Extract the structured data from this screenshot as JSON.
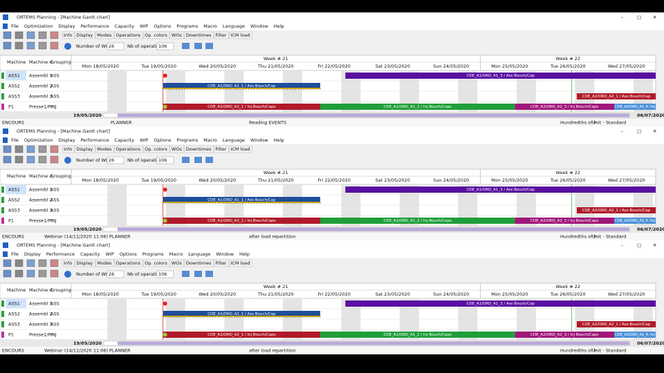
{
  "windows": [
    {
      "title": "ORTEMS Planning - [Machine Gantt chart]",
      "menu": [
        "File",
        "Optimization",
        "Display",
        "Performance",
        "Capacity",
        "WIP",
        "Options",
        "Programs",
        "Macro",
        "Language",
        "Window",
        "Help"
      ],
      "status": [
        "ENCOURS",
        "PLANNER",
        "Reading EVENTS",
        "Hundredths of h.",
        "Unit - Standard"
      ]
    },
    {
      "title": "ORTEMS Planning - [Machine Gantt chart]",
      "menu": [
        "File",
        "Optimization",
        "Display",
        "Performance",
        "Capacity",
        "WIP",
        "Options",
        "Programs",
        "Macro",
        "Language",
        "Window",
        "Help"
      ],
      "status": [
        "ENCOURS",
        "Webinar (14/11/2020 11:06)",
        "PLANNER",
        "after load repartition",
        "Hundredths of h.",
        "Unit - Standard"
      ]
    },
    {
      "title": "ORTEMS Planning - [Machine Gantt chart]",
      "menu": [
        "File",
        "Display",
        "Performance",
        "Capacity",
        "WIP",
        "Options",
        "Programs",
        "Macro",
        "Language",
        "Window",
        "Help"
      ],
      "status": [
        "ENCOURS",
        "Webinar (14/11/2020 11:06)",
        "PLANNER",
        "after load repartition",
        "Hundredths of h.",
        "Unit - Standard"
      ]
    }
  ],
  "tabs": [
    "Info",
    "Display",
    "Modes",
    "Operations",
    "Op. colors",
    "WOs",
    "Downtimes",
    "Filter",
    "ICM load"
  ],
  "wo_label": "Number of WOs",
  "wo_value": "26",
  "ops_label": "Nb of operations",
  "ops_value": "106",
  "columns": [
    "Machine",
    "Machine d.",
    "Grouping"
  ],
  "rows": [
    {
      "machine": "ASS1",
      "desc": "Assembl 1",
      "group": "ASS",
      "color": "#2e9e3e"
    },
    {
      "machine": "ASS2",
      "desc": "Assembl 2",
      "group": "ASS",
      "color": "#2e9e3e"
    },
    {
      "machine": "ASS3",
      "desc": "Assembl 3",
      "group": "ASS",
      "color": "#2e9e3e"
    },
    {
      "machine": "P1",
      "desc": "Presse1/Pr",
      "group": "INJ",
      "color": "#c0309a"
    }
  ],
  "date_left": "19/05/2020",
  "date_right": "06/07/2020",
  "gantt": {
    "xlim": [
      0,
      10
    ],
    "weeks": [
      "Week # 21",
      "Week # 22"
    ],
    "days": [
      "Mon 18/05/2020",
      "Tue 19/05/2020",
      "Wed 20/05/2020",
      "Thu 21/05/2020",
      "Fri 22/05/2020",
      "Sat 23/05/2020",
      "Sun 24/05/2020",
      "Mon 25/05/2020",
      "Tue 26/05/2020",
      "Wed 27/05/2020"
    ],
    "current_time": 1.57,
    "milestone": 8.56,
    "bars": [
      {
        "row": 0,
        "label": "CDE_A1/ORD_A1_3 / Ass Bouch/Cap",
        "start": 4.69,
        "end": 10,
        "color": "#5a0fa0"
      },
      {
        "row": 1,
        "label": "CDE_A1/ORD_A1_1 / Ass Bouch/Cap",
        "start": 1.57,
        "end": 4.26,
        "color": "#1f4e9c",
        "hatched": true
      },
      {
        "row": 2,
        "label": "CDE_A2/ORD_A2_1 / Ass Bouch/Cap",
        "start": 8.65,
        "end": 10,
        "color": "#b01a2a"
      },
      {
        "row": 3,
        "label": "CDE_A2/ORD_A2_1 / Inj Bouch/Caps",
        "start": 1.57,
        "end": 4.26,
        "color": "#b01a2a"
      },
      {
        "row": 3,
        "label": "CDE_A1/ORD_A1_2 / Inj Bouch/Caps",
        "start": 4.26,
        "end": 7.59,
        "color": "#1f9e3a"
      },
      {
        "row": 3,
        "label": "CDE_A2/ORD_A2_3 / Inj Bouch/Caps",
        "start": 7.59,
        "end": 9.29,
        "color": "#a0177a"
      },
      {
        "row": 3,
        "label": "CDE_A2/ORD_A2_4 / Inj",
        "start": 9.29,
        "end": 10,
        "color": "#4a90d9"
      }
    ]
  }
}
